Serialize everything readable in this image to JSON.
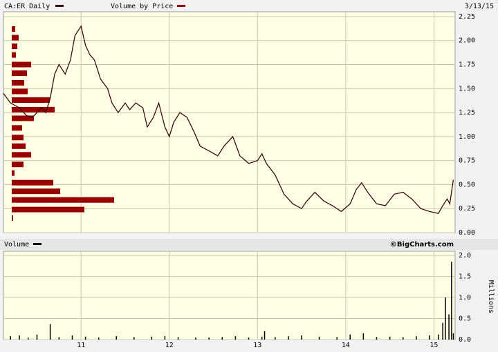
{
  "chart_data": [
    {
      "type": "line",
      "date": "3/13/15",
      "series": [
        {
          "name": "CA:ER Daily",
          "color": "#3a0a0a",
          "x": [
            10.12,
            10.2,
            10.3,
            10.38,
            10.45,
            10.55,
            10.6,
            10.65,
            10.7,
            10.75,
            10.82,
            10.88,
            10.93,
            11.0,
            11.05,
            11.1,
            11.15,
            11.22,
            11.3,
            11.35,
            11.42,
            11.5,
            11.55,
            11.62,
            11.7,
            11.75,
            11.82,
            11.88,
            11.95,
            12.0,
            12.05,
            12.12,
            12.2,
            12.28,
            12.35,
            12.45,
            12.55,
            12.62,
            12.72,
            12.8,
            12.9,
            13.0,
            13.05,
            13.1,
            13.2,
            13.3,
            13.4,
            13.5,
            13.55,
            13.65,
            13.75,
            13.85,
            13.95,
            14.05,
            14.12,
            14.18,
            14.25,
            14.35,
            14.45,
            14.55,
            14.65,
            14.75,
            14.85,
            14.95,
            15.05,
            15.1,
            15.15,
            15.18,
            15.22
          ],
          "values": [
            1.45,
            1.35,
            1.3,
            1.22,
            1.2,
            1.3,
            1.25,
            1.4,
            1.65,
            1.75,
            1.65,
            1.8,
            2.05,
            2.15,
            1.95,
            1.85,
            1.8,
            1.6,
            1.5,
            1.35,
            1.25,
            1.35,
            1.28,
            1.35,
            1.3,
            1.1,
            1.2,
            1.35,
            1.1,
            1.0,
            1.15,
            1.25,
            1.2,
            1.05,
            0.9,
            0.85,
            0.8,
            0.9,
            1.0,
            0.8,
            0.72,
            0.75,
            0.82,
            0.72,
            0.6,
            0.4,
            0.3,
            0.25,
            0.32,
            0.42,
            0.33,
            0.28,
            0.22,
            0.3,
            0.45,
            0.52,
            0.42,
            0.3,
            0.28,
            0.4,
            0.42,
            0.35,
            0.25,
            0.22,
            0.2,
            0.28,
            0.35,
            0.3,
            0.55
          ]
        }
      ],
      "volume_by_price": {
        "name": "Volume by Price",
        "color": "#990000",
        "levels": [
          2.12,
          2.03,
          1.94,
          1.85,
          1.75,
          1.66,
          1.56,
          1.47,
          1.38,
          1.28,
          1.19,
          1.09,
          0.99,
          0.9,
          0.81,
          0.71,
          0.62,
          0.52,
          0.43,
          0.34,
          0.24,
          0.15
        ],
        "values": [
          5,
          10,
          8,
          6,
          28,
          22,
          18,
          23,
          55,
          62,
          32,
          15,
          17,
          20,
          28,
          17,
          4,
          60,
          70,
          148,
          105,
          2
        ]
      },
      "xlim": [
        10.12,
        15.24
      ],
      "xticks": [
        11,
        12,
        13,
        14,
        15
      ],
      "ylim": [
        0,
        2.3
      ],
      "yticks": [
        {
          "value": 0,
          "label": "0.00"
        },
        {
          "value": 0.25,
          "label": "0.25"
        },
        {
          "value": 0.5,
          "label": "0.50"
        },
        {
          "value": 0.75,
          "label": "0.75"
        },
        {
          "value": 1,
          "label": "1.00"
        },
        {
          "value": 1.25,
          "label": "1.25"
        },
        {
          "value": 1.5,
          "label": "1.50"
        },
        {
          "value": 1.75,
          "label": "1.75"
        },
        {
          "value": 2,
          "label": "2.00"
        },
        {
          "value": 2.25,
          "label": "2.25"
        }
      ],
      "grid": true
    },
    {
      "type": "bar",
      "credit": "©BigCharts.com",
      "y_label": "Millions",
      "series": [
        {
          "name": "Volume",
          "color": "#000000",
          "x": [
            10.2,
            10.3,
            10.4,
            10.5,
            10.65,
            10.75,
            10.9,
            11.05,
            11.2,
            11.4,
            11.6,
            11.8,
            11.95,
            12.1,
            12.3,
            12.45,
            12.6,
            12.75,
            12.9,
            13.05,
            13.08,
            13.2,
            13.35,
            13.5,
            13.7,
            13.9,
            14.05,
            14.2,
            14.35,
            14.5,
            14.65,
            14.8,
            14.95,
            15.05,
            15.1,
            15.13,
            15.17,
            15.2,
            15.22
          ],
          "values": [
            0.08,
            0.1,
            0.05,
            0.12,
            0.37,
            0.06,
            0.1,
            0.07,
            0.05,
            0.08,
            0.06,
            0.07,
            0.08,
            0.06,
            0.05,
            0.05,
            0.06,
            0.08,
            0.05,
            0.07,
            0.2,
            0.06,
            0.08,
            0.1,
            0.07,
            0.06,
            0.12,
            0.15,
            0.06,
            0.07,
            0.06,
            0.08,
            0.1,
            0.12,
            0.4,
            1.0,
            0.6,
            1.85,
            0.15
          ]
        }
      ],
      "xlim": [
        10.12,
        15.24
      ],
      "xticks": [
        11,
        12,
        13,
        14,
        15
      ],
      "ylim": [
        0,
        2.1
      ],
      "yticks": [
        {
          "value": 0,
          "label": "0.0"
        },
        {
          "value": 0.5,
          "label": "0.5"
        },
        {
          "value": 1,
          "label": "1.0"
        },
        {
          "value": 1.5,
          "label": "1.5"
        },
        {
          "value": 2,
          "label": "2.0"
        }
      ],
      "grid": true
    }
  ]
}
